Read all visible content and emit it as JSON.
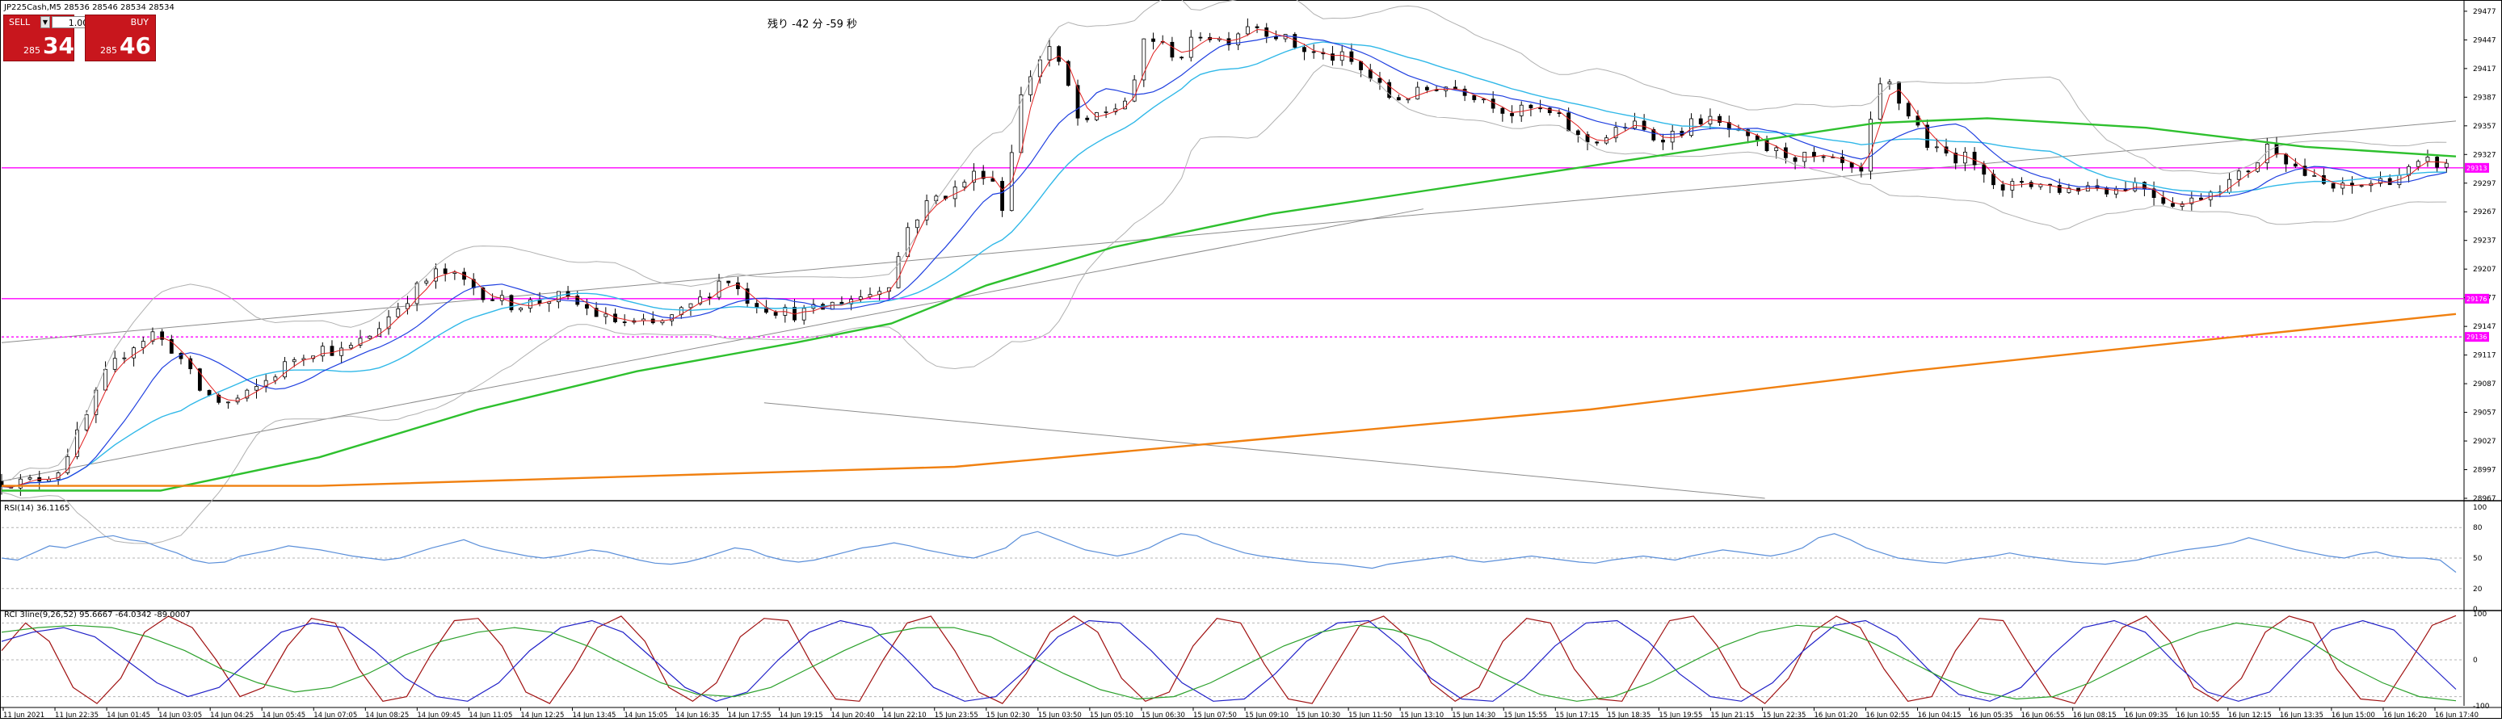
{
  "window": {
    "symbol_header": "JP225Cash,M5  28536 28546 28534 28534",
    "countdown": "残り -42 分 -59 秒"
  },
  "trade_panel": {
    "sell_label": "SELL",
    "buy_label": "BUY",
    "lot_value": "1.00",
    "sell_price_prefix": "285",
    "sell_price_big": "34",
    "buy_price_prefix": "285",
    "buy_price_big": "46",
    "accent_color": "#c8161d"
  },
  "chart_data": [
    {
      "type": "candlestick",
      "name": "JP225Cash M5 price",
      "yaxis_ticks": [
        29477,
        29447,
        29417,
        29387,
        29357,
        29327,
        29297,
        29267,
        29237,
        29207,
        29177,
        29147,
        29117,
        29087,
        29057,
        29027,
        28997,
        28967
      ],
      "ylim": [
        28967,
        29482
      ],
      "x_time_labels": [
        "11 Jun 2021",
        "11 Jun 22:35",
        "14 Jun 01:45",
        "14 Jun 03:05",
        "14 Jun 04:25",
        "14 Jun 05:45",
        "14 Jun 07:05",
        "14 Jun 08:25",
        "14 Jun 09:45",
        "14 Jun 11:05",
        "14 Jun 12:25",
        "14 Jun 13:45",
        "14 Jun 15:05",
        "14 Jun 16:35",
        "14 Jun 17:55",
        "14 Jun 19:15",
        "14 Jun 20:40",
        "14 Jun 22:10",
        "15 Jun 23:55",
        "15 Jun 02:30",
        "15 Jun 03:50",
        "15 Jun 05:10",
        "15 Jun 06:30",
        "15 Jun 07:50",
        "15 Jun 09:10",
        "15 Jun 10:30",
        "15 Jun 11:50",
        "15 Jun 13:10",
        "15 Jun 14:30",
        "15 Jun 15:55",
        "15 Jun 17:15",
        "15 Jun 18:35",
        "15 Jun 19:55",
        "15 Jun 21:15",
        "15 Jun 22:35",
        "16 Jun 01:20",
        "16 Jun 02:55",
        "16 Jun 04:15",
        "16 Jun 05:35",
        "16 Jun 06:55",
        "16 Jun 08:15",
        "16 Jun 09:35",
        "16 Jun 10:55",
        "16 Jun 12:15",
        "16 Jun 13:35",
        "16 Jun 15:00",
        "16 Jun 16:20",
        "16 Jun 17:40"
      ],
      "price_path": [
        [
          0,
          28985
        ],
        [
          15,
          28983
        ],
        [
          35,
          28995
        ],
        [
          50,
          29040
        ],
        [
          65,
          29095
        ],
        [
          80,
          29125
        ],
        [
          95,
          29140
        ],
        [
          110,
          29120
        ],
        [
          125,
          29080
        ],
        [
          140,
          29065
        ],
        [
          155,
          29075
        ],
        [
          170,
          29095
        ],
        [
          185,
          29115
        ],
        [
          200,
          29125
        ],
        [
          215,
          29120
        ],
        [
          230,
          29135
        ],
        [
          245,
          29160
        ],
        [
          260,
          29185
        ],
        [
          275,
          29205
        ],
        [
          290,
          29195
        ],
        [
          305,
          29180
        ],
        [
          320,
          29170
        ],
        [
          335,
          29172
        ],
        [
          350,
          29178
        ],
        [
          365,
          29168
        ],
        [
          380,
          29155
        ],
        [
          395,
          29150
        ],
        [
          410,
          29148
        ],
        [
          425,
          29158
        ],
        [
          440,
          29175
        ],
        [
          455,
          29200
        ],
        [
          470,
          29175
        ],
        [
          485,
          29165
        ],
        [
          500,
          29160
        ],
        [
          515,
          29165
        ],
        [
          530,
          29175
        ],
        [
          545,
          29180
        ],
        [
          560,
          29195
        ],
        [
          570,
          29250
        ],
        [
          585,
          29280
        ],
        [
          600,
          29290
        ],
        [
          610,
          29305
        ],
        [
          622,
          29310
        ],
        [
          630,
          29270
        ],
        [
          640,
          29380
        ],
        [
          650,
          29420
        ],
        [
          660,
          29440
        ],
        [
          672,
          29395
        ],
        [
          680,
          29350
        ],
        [
          690,
          29370
        ],
        [
          700,
          29375
        ],
        [
          712,
          29390
        ],
        [
          720,
          29455
        ],
        [
          730,
          29440
        ],
        [
          742,
          29430
        ],
        [
          755,
          29455
        ],
        [
          770,
          29445
        ],
        [
          785,
          29465
        ],
        [
          800,
          29455
        ],
        [
          815,
          29440
        ],
        [
          830,
          29430
        ],
        [
          845,
          29428
        ],
        [
          860,
          29410
        ],
        [
          875,
          29385
        ],
        [
          890,
          29390
        ],
        [
          905,
          29400
        ],
        [
          920,
          29395
        ],
        [
          935,
          29385
        ],
        [
          950,
          29370
        ],
        [
          965,
          29375
        ],
        [
          980,
          29365
        ],
        [
          995,
          29340
        ],
        [
          1010,
          29345
        ],
        [
          1025,
          29360
        ],
        [
          1040,
          29345
        ],
        [
          1055,
          29350
        ],
        [
          1070,
          29365
        ],
        [
          1085,
          29355
        ],
        [
          1100,
          29340
        ],
        [
          1115,
          29330
        ],
        [
          1130,
          29325
        ],
        [
          1145,
          29320
        ],
        [
          1160,
          29315
        ],
        [
          1170,
          29300
        ],
        [
          1178,
          29370
        ],
        [
          1185,
          29410
        ],
        [
          1195,
          29380
        ],
        [
          1205,
          29360
        ],
        [
          1215,
          29330
        ],
        [
          1230,
          29325
        ],
        [
          1245,
          29320
        ],
        [
          1260,
          29285
        ],
        [
          1270,
          29300
        ],
        [
          1285,
          29295
        ],
        [
          1300,
          29290
        ],
        [
          1315,
          29295
        ],
        [
          1330,
          29290
        ],
        [
          1345,
          29298
        ],
        [
          1360,
          29280
        ],
        [
          1375,
          29275
        ],
        [
          1390,
          29290
        ],
        [
          1405,
          29300
        ],
        [
          1420,
          29320
        ],
        [
          1428,
          29340
        ],
        [
          1440,
          29320
        ],
        [
          1455,
          29300
        ],
        [
          1470,
          29290
        ],
        [
          1485,
          29295
        ],
        [
          1500,
          29300
        ],
        [
          1515,
          29310
        ],
        [
          1530,
          29320
        ],
        [
          1545,
          29310
        ]
      ],
      "sma_green": [
        [
          0,
          28975
        ],
        [
          100,
          28975
        ],
        [
          200,
          29010
        ],
        [
          300,
          29060
        ],
        [
          400,
          29100
        ],
        [
          500,
          29130
        ],
        [
          560,
          29150
        ],
        [
          620,
          29190
        ],
        [
          700,
          29230
        ],
        [
          800,
          29265
        ],
        [
          900,
          29290
        ],
        [
          1000,
          29315
        ],
        [
          1100,
          29340
        ],
        [
          1180,
          29360
        ],
        [
          1250,
          29365
        ],
        [
          1350,
          29355
        ],
        [
          1450,
          29335
        ],
        [
          1545,
          29325
        ]
      ],
      "sma_orange": [
        [
          0,
          28980
        ],
        [
          200,
          28980
        ],
        [
          400,
          28990
        ],
        [
          600,
          29000
        ],
        [
          800,
          29030
        ],
        [
          1000,
          29060
        ],
        [
          1200,
          29100
        ],
        [
          1400,
          29135
        ],
        [
          1545,
          29160
        ]
      ],
      "horizontal_lines": [
        {
          "value": 29313,
          "label": "29313",
          "style": "solid",
          "color": "#ff00ff"
        },
        {
          "value": 29176,
          "label": "29176",
          "style": "solid",
          "color": "#ff00ff"
        },
        {
          "value": 29136,
          "label": "29136",
          "style": "dashed",
          "color": "#ff00ff"
        }
      ],
      "trendlines": [
        {
          "from": [
            0,
            29130
          ],
          "to": [
            1545,
            29362
          ]
        },
        {
          "from": [
            0,
            28985
          ],
          "to": [
            895,
            29270
          ]
        },
        {
          "from": [
            480,
            29067
          ],
          "to": [
            1110,
            28967
          ]
        }
      ],
      "current_price": 29313
    },
    {
      "type": "line",
      "name": "RSI",
      "title": "RSI(14) 36.1165",
      "yaxis_ticks": [
        100,
        80,
        50,
        20,
        0
      ],
      "ylim": [
        0,
        100
      ],
      "grid_levels": [
        80,
        50,
        20
      ],
      "values": [
        50,
        48,
        55,
        62,
        60,
        65,
        70,
        72,
        68,
        66,
        60,
        55,
        48,
        45,
        46,
        52,
        55,
        58,
        62,
        60,
        58,
        55,
        52,
        50,
        48,
        50,
        55,
        60,
        64,
        68,
        62,
        58,
        55,
        52,
        50,
        52,
        55,
        58,
        56,
        52,
        48,
        45,
        44,
        46,
        50,
        55,
        60,
        58,
        52,
        48,
        46,
        48,
        52,
        56,
        60,
        62,
        65,
        62,
        58,
        55,
        52,
        50,
        55,
        60,
        72,
        76,
        70,
        64,
        58,
        55,
        52,
        55,
        60,
        68,
        74,
        72,
        65,
        60,
        55,
        52,
        50,
        48,
        46,
        45,
        44,
        42,
        40,
        44,
        46,
        48,
        50,
        52,
        48,
        46,
        48,
        50,
        52,
        50,
        48,
        46,
        45,
        48,
        50,
        52,
        50,
        48,
        52,
        55,
        58,
        56,
        54,
        52,
        55,
        60,
        70,
        74,
        68,
        60,
        55,
        50,
        48,
        46,
        45,
        48,
        50,
        52,
        55,
        52,
        50,
        48,
        46,
        45,
        44,
        46,
        48,
        52,
        55,
        58,
        60,
        62,
        65,
        70,
        66,
        62,
        58,
        55,
        52,
        50,
        54,
        56,
        52,
        50,
        50,
        48,
        36
      ]
    },
    {
      "type": "line",
      "name": "RCI",
      "title": "RCI 3line(9,26,52) 95.6667 -64.0342 -89.0007",
      "yaxis_ticks": [
        100,
        0,
        -100
      ],
      "ylim": [
        -100,
        100
      ],
      "series": [
        {
          "color": "#a01010",
          "values": [
            20,
            80,
            40,
            -60,
            -95,
            -40,
            60,
            95,
            70,
            0,
            -80,
            -60,
            30,
            90,
            80,
            -20,
            -90,
            -80,
            10,
            85,
            90,
            30,
            -70,
            -95,
            -20,
            70,
            95,
            40,
            -60,
            -90,
            -50,
            50,
            90,
            85,
            -10,
            -85,
            -90,
            0,
            80,
            95,
            20,
            -70,
            -95,
            -30,
            60,
            95,
            60,
            -40,
            -90,
            -70,
            30,
            90,
            80,
            -10,
            -85,
            -95,
            -10,
            75,
            95,
            50,
            -50,
            -90,
            -60,
            40,
            90,
            80,
            -20,
            -85,
            -90,
            0,
            85,
            95,
            30,
            -60,
            -95,
            -40,
            60,
            95,
            70,
            -20,
            -90,
            -80,
            20,
            90,
            85,
            0,
            -80,
            -95,
            -10,
            70,
            95,
            40,
            -60,
            -90,
            -40,
            60,
            95,
            80,
            -20,
            -85,
            -90,
            -10,
            75,
            96
          ]
        },
        {
          "color": "#2020c8",
          "values": [
            40,
            60,
            70,
            50,
            0,
            -50,
            -80,
            -60,
            0,
            60,
            80,
            70,
            20,
            -40,
            -80,
            -90,
            -50,
            20,
            70,
            85,
            60,
            0,
            -60,
            -90,
            -70,
            0,
            60,
            85,
            70,
            10,
            -60,
            -90,
            -80,
            -20,
            50,
            85,
            80,
            20,
            -50,
            -90,
            -85,
            -30,
            40,
            80,
            85,
            30,
            -40,
            -85,
            -90,
            -40,
            30,
            80,
            85,
            40,
            -30,
            -80,
            -90,
            -50,
            20,
            75,
            85,
            50,
            -20,
            -75,
            -90,
            -60,
            10,
            70,
            85,
            60,
            -10,
            -70,
            -90,
            -70,
            0,
            65,
            85,
            65,
            0,
            -64
          ]
        },
        {
          "color": "#2aa02a",
          "values": [
            60,
            70,
            75,
            70,
            50,
            20,
            -20,
            -50,
            -70,
            -60,
            -30,
            10,
            40,
            60,
            70,
            60,
            30,
            -10,
            -50,
            -75,
            -80,
            -60,
            -20,
            20,
            55,
            70,
            70,
            50,
            10,
            -30,
            -65,
            -85,
            -80,
            -50,
            -10,
            30,
            60,
            75,
            65,
            40,
            0,
            -40,
            -75,
            -90,
            -80,
            -50,
            -10,
            30,
            60,
            75,
            70,
            40,
            0,
            -40,
            -70,
            -85,
            -80,
            -50,
            -10,
            30,
            60,
            80,
            70,
            40,
            -10,
            -50,
            -80,
            -89
          ]
        }
      ]
    }
  ],
  "colors": {
    "candle_up": "#000000",
    "candle_down": "#000000",
    "ma_red": "#e02020",
    "ma_blue": "#2040e0",
    "ma_cyan": "#30b8e8",
    "ma_green": "#2ec02e",
    "ma_orange": "#f08010",
    "bollinger": "#b0b0b0",
    "rsi_line": "#5b8fd9",
    "hline_magenta": "#ff00ff"
  }
}
